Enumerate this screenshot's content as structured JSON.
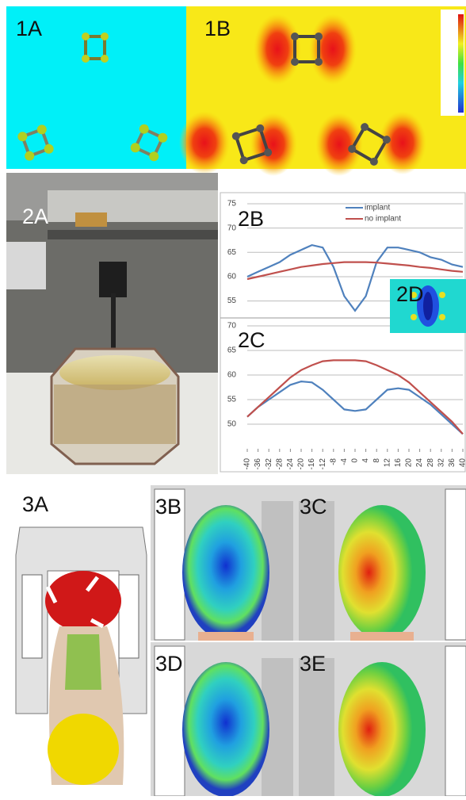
{
  "labels": [
    "1A",
    "1B",
    "2A",
    "2D",
    "3A",
    "3B",
    "3C",
    "3D",
    "3E"
  ],
  "chart_data": [
    {
      "type": "line",
      "title": "2B",
      "x": [
        -40,
        -36,
        -32,
        -28,
        -24,
        -20,
        -16,
        -12,
        -8,
        -4,
        0,
        4,
        8,
        12,
        16,
        20,
        24,
        28,
        32,
        36,
        40
      ],
      "xlim": [
        -40,
        40
      ],
      "ylim": [
        52,
        75
      ],
      "yticks": [
        55,
        60,
        65,
        70,
        75
      ],
      "grid": true,
      "legend": "top-right",
      "series": [
        {
          "name": "implant",
          "color": "#4f81bd",
          "values": [
            60,
            61,
            62,
            63,
            64.5,
            65.5,
            66.5,
            66,
            62,
            56,
            53,
            56,
            63,
            66,
            66,
            65.5,
            65,
            64,
            63.5,
            62.5,
            62
          ]
        },
        {
          "name": "no implant",
          "color": "#c0504d",
          "values": [
            59.5,
            60,
            60.5,
            61,
            61.5,
            62,
            62.3,
            62.6,
            62.8,
            63,
            63,
            63,
            62.9,
            62.7,
            62.5,
            62.3,
            62,
            61.8,
            61.5,
            61.2,
            61
          ]
        }
      ]
    },
    {
      "type": "line",
      "title": "2C",
      "x": [
        -40,
        -36,
        -32,
        -28,
        -24,
        -20,
        -16,
        -12,
        -8,
        -4,
        0,
        4,
        8,
        12,
        16,
        20,
        24,
        28,
        32,
        36,
        40
      ],
      "xlim": [
        -40,
        40
      ],
      "xticks": [
        -40,
        -36,
        -32,
        -28,
        -24,
        -20,
        -16,
        -12,
        -8,
        -4,
        0,
        4,
        8,
        12,
        16,
        20,
        24,
        28,
        32,
        36,
        40
      ],
      "ylim": [
        45,
        70
      ],
      "yticks": [
        50,
        55,
        60,
        65,
        70
      ],
      "grid": true,
      "series": [
        {
          "color": "#4f81bd",
          "values": [
            51.5,
            53.5,
            55,
            56.5,
            58,
            58.7,
            58.5,
            57,
            55,
            53,
            52.7,
            53,
            55,
            57,
            57.3,
            57,
            55.5,
            54,
            52,
            50,
            48
          ]
        },
        {
          "color": "#c0504d",
          "values": [
            51.5,
            53.5,
            55.5,
            57.5,
            59.5,
            61,
            62,
            62.8,
            63,
            63,
            63,
            62.8,
            62,
            61,
            60,
            58.5,
            56.5,
            54.5,
            52.5,
            50.5,
            48
          ]
        }
      ]
    }
  ]
}
